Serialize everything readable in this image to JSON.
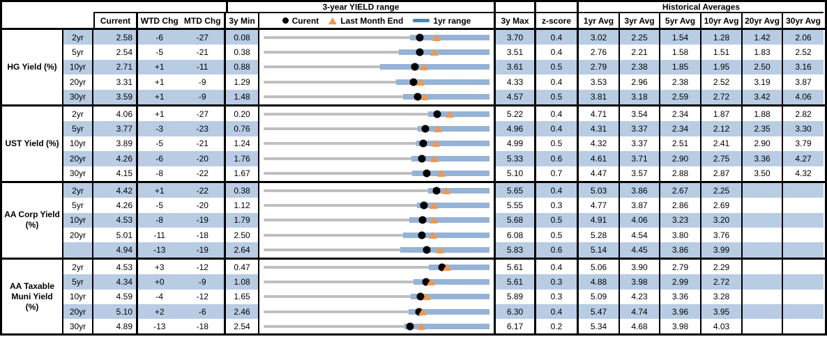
{
  "title_bands": {
    "yield_range": "3-year YIELD range",
    "historical": "Historical Averages"
  },
  "columns": {
    "current": "Current",
    "wtd": "WTD Chg",
    "mtd": "MTD Chg",
    "min": "3y Min",
    "max": "3y Max",
    "zscore": "z-score",
    "averages": [
      "1yr Avg",
      "3yr Avg",
      "5yr Avg",
      "10yr Avg",
      "20yr Avg",
      "30yr Avg"
    ]
  },
  "legend": {
    "current": "Curent",
    "last_month_end": "Last Month End",
    "range": "1yr range"
  },
  "colors": {
    "row_shade": "#B8CCE4",
    "bar_1yr_range": "#95B3D7",
    "bar_3yr_range": "#BFBFBF",
    "marker_current": "#000000",
    "marker_last_month_end": "#F79646",
    "legend_range_line": "#4F81BD"
  },
  "chart_data": {
    "type": "bullet-range table",
    "note": "Each row: gray bar spans 3y Min..3y Max; blue bar is 1yr range (low estimated from pixels, high = 3y Max); dot = current; triangle = last month end (current minus MTD chg).",
    "sections": [
      {
        "label": "HG Yield (%)",
        "rows": [
          {
            "tenor": "2yr",
            "current": "2.58",
            "wtd": "-6",
            "mtd": "-27",
            "min": "0.08",
            "max": "3.70",
            "z": "0.4",
            "avgs": [
              "3.02",
              "2.25",
              "1.54",
              "1.28",
              "1.42",
              "2.06"
            ],
            "yr1_low": 2.43,
            "last_month_end": 2.85
          },
          {
            "tenor": "5yr",
            "current": "2.54",
            "wtd": "-5",
            "mtd": "-21",
            "min": "0.38",
            "max": "3.51",
            "z": "0.4",
            "avgs": [
              "2.76",
              "2.21",
              "1.58",
              "1.51",
              "1.83",
              "2.52"
            ],
            "yr1_low": 2.25,
            "last_month_end": 2.75
          },
          {
            "tenor": "10yr",
            "current": "2.71",
            "wtd": "+1",
            "mtd": "-11",
            "min": "0.88",
            "max": "3.61",
            "z": "0.5",
            "avgs": [
              "2.79",
              "2.38",
              "1.85",
              "1.95",
              "2.50",
              "3.16"
            ],
            "yr1_low": 2.29,
            "last_month_end": 2.82
          },
          {
            "tenor": "20yr",
            "current": "3.31",
            "wtd": "+1",
            "mtd": "-9",
            "min": "1.29",
            "max": "4.33",
            "z": "0.4",
            "avgs": [
              "3.53",
              "2.96",
              "2.38",
              "2.52",
              "3.19",
              "3.87"
            ],
            "yr1_low": 3.07,
            "last_month_end": 3.4
          },
          {
            "tenor": "30yr",
            "current": "3.59",
            "wtd": "+1",
            "mtd": "-9",
            "min": "1.48",
            "max": "4.57",
            "z": "0.5",
            "avgs": [
              "3.81",
              "3.18",
              "2.59",
              "2.72",
              "3.42",
              "4.06"
            ],
            "yr1_low": 3.39,
            "last_month_end": 3.68
          }
        ]
      },
      {
        "label": "UST Yield (%)",
        "rows": [
          {
            "tenor": "2yr",
            "current": "4.06",
            "wtd": "+1",
            "mtd": "-27",
            "min": "0.20",
            "max": "5.22",
            "z": "0.4",
            "avgs": [
              "4.71",
              "3.54",
              "2.34",
              "1.87",
              "1.88",
              "2.82"
            ],
            "yr1_low": 3.86,
            "last_month_end": 4.33
          },
          {
            "tenor": "5yr",
            "current": "3.77",
            "wtd": "-3",
            "mtd": "-23",
            "min": "0.76",
            "max": "4.96",
            "z": "0.4",
            "avgs": [
              "4.31",
              "3.37",
              "2.34",
              "2.12",
              "2.35",
              "3.30"
            ],
            "yr1_low": 3.62,
            "last_month_end": 4.0
          },
          {
            "tenor": "10yr",
            "current": "3.89",
            "wtd": "-5",
            "mtd": "-21",
            "min": "1.24",
            "max": "4.99",
            "z": "0.5",
            "avgs": [
              "4.32",
              "3.37",
              "2.51",
              "2.41",
              "2.90",
              "3.79"
            ],
            "yr1_low": 3.78,
            "last_month_end": 4.1
          },
          {
            "tenor": "20yr",
            "current": "4.26",
            "wtd": "-6",
            "mtd": "-20",
            "min": "1.76",
            "max": "5.33",
            "z": "0.6",
            "avgs": [
              "4.61",
              "3.71",
              "2.90",
              "2.75",
              "3.36",
              "4.27"
            ],
            "yr1_low": 4.1,
            "last_month_end": 4.46
          },
          {
            "tenor": "30yr",
            "current": "4.15",
            "wtd": "-8",
            "mtd": "-22",
            "min": "1.67",
            "max": "5.10",
            "z": "0.7",
            "avgs": [
              "4.47",
              "3.57",
              "2.88",
              "2.87",
              "3.50",
              "4.32"
            ],
            "yr1_low": 3.93,
            "last_month_end": 4.37
          }
        ]
      },
      {
        "label": "AA Corp Yield\n(%)",
        "rows": [
          {
            "tenor": "2yr",
            "current": "4.42",
            "wtd": "+1",
            "mtd": "-22",
            "min": "0.38",
            "max": "5.65",
            "z": "0.4",
            "avgs": [
              "5.03",
              "3.86",
              "2.67",
              "2.25",
              "",
              ""
            ],
            "yr1_low": 4.22,
            "last_month_end": 4.64
          },
          {
            "tenor": "5yr",
            "current": "4.26",
            "wtd": "-5",
            "mtd": "-20",
            "min": "1.12",
            "max": "5.55",
            "z": "0.3",
            "avgs": [
              "4.77",
              "3.87",
              "2.86",
              "2.69",
              "",
              ""
            ],
            "yr1_low": 4.13,
            "last_month_end": 4.46
          },
          {
            "tenor": "10yr",
            "current": "4.53",
            "wtd": "-8",
            "mtd": "-19",
            "min": "1.79",
            "max": "5.68",
            "z": "0.5",
            "avgs": [
              "4.91",
              "4.06",
              "3.23",
              "3.20",
              "",
              ""
            ],
            "yr1_low": 4.3,
            "last_month_end": 4.72
          },
          {
            "tenor": "20yr",
            "current": "5.01",
            "wtd": "-11",
            "mtd": "-18",
            "min": "2.50",
            "max": "6.08",
            "z": "0.5",
            "avgs": [
              "5.28",
              "4.54",
              "3.80",
              "3.76",
              "",
              ""
            ],
            "yr1_low": 4.71,
            "last_month_end": 5.19
          },
          {
            "tenor": "",
            "current": "4.94",
            "wtd": "-13",
            "mtd": "-19",
            "min": "2.64",
            "max": "5.83",
            "z": "0.6",
            "avgs": [
              "5.14",
              "4.45",
              "3.86",
              "3.99",
              "",
              ""
            ],
            "yr1_low": 4.57,
            "last_month_end": 5.13
          }
        ]
      },
      {
        "label": "AA Taxable\nMuni Yield\n(%)",
        "rows": [
          {
            "tenor": "2yr",
            "current": "4.53",
            "wtd": "+3",
            "mtd": "-12",
            "min": "0.47",
            "max": "5.61",
            "z": "0.4",
            "avgs": [
              "5.06",
              "3.90",
              "2.79",
              "2.29",
              "",
              ""
            ],
            "yr1_low": 4.23,
            "last_month_end": 4.65
          },
          {
            "tenor": "5yr",
            "current": "4.34",
            "wtd": "+0",
            "mtd": "-9",
            "min": "1.08",
            "max": "5.61",
            "z": "0.3",
            "avgs": [
              "4.88",
              "3.98",
              "2.99",
              "2.72",
              "",
              ""
            ],
            "yr1_low": 4.09,
            "last_month_end": 4.43
          },
          {
            "tenor": "10yr",
            "current": "4.59",
            "wtd": "-4",
            "mtd": "-12",
            "min": "1.65",
            "max": "5.89",
            "z": "0.3",
            "avgs": [
              "5.09",
              "4.23",
              "3.36",
              "3.28",
              "",
              ""
            ],
            "yr1_low": 4.41,
            "last_month_end": 4.71
          },
          {
            "tenor": "20yr",
            "current": "5.10",
            "wtd": "+2",
            "mtd": "-6",
            "min": "2.46",
            "max": "6.30",
            "z": "0.4",
            "avgs": [
              "5.47",
              "4.74",
              "3.96",
              "3.95",
              "",
              ""
            ],
            "yr1_low": 4.93,
            "last_month_end": 5.16
          },
          {
            "tenor": "30yr",
            "current": "4.89",
            "wtd": "-13",
            "mtd": "-18",
            "min": "2.54",
            "max": "6.17",
            "z": "0.2",
            "avgs": [
              "5.34",
              "4.68",
              "3.98",
              "4.03",
              "",
              ""
            ],
            "yr1_low": 4.8,
            "last_month_end": 5.07
          }
        ]
      }
    ]
  }
}
